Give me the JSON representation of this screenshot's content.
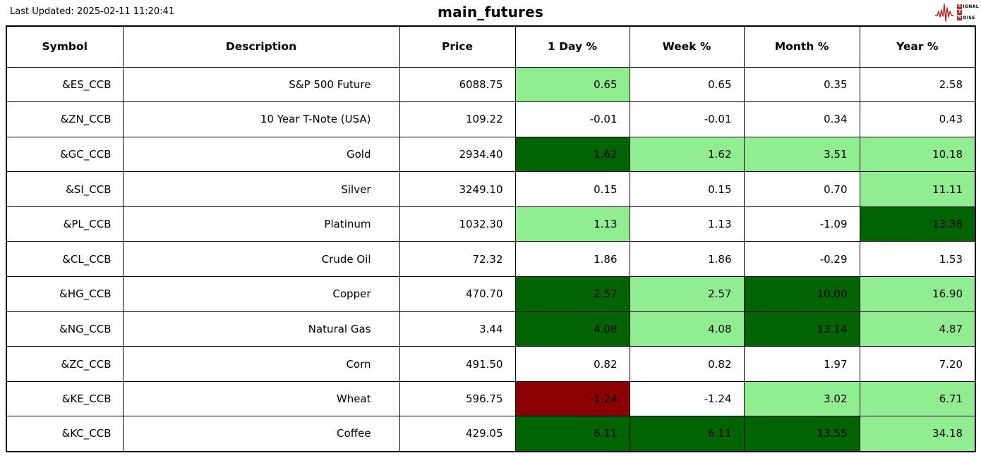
{
  "meta": {
    "last_updated": "Last Updated: 2025-02-11 11:20:41",
    "title": "main_futures"
  },
  "logo": {
    "lines": [
      {
        "badge": "S",
        "rest": "IGNAL"
      },
      {
        "badge": "2",
        "rest": ""
      },
      {
        "badge": "N",
        "rest": "OISE"
      }
    ]
  },
  "colors": {
    "light_green": "#90EE90",
    "dark_green": "#006400",
    "dark_red": "#8B0000",
    "white": "#FFFFFF",
    "logo_red": "#C41E1E",
    "border": "#000000"
  },
  "table": {
    "columns": [
      "Symbol",
      "Description",
      "Price",
      "1 Day %",
      "Week %",
      "Month %",
      "Year %"
    ],
    "pct_keys": [
      "day-pct",
      "week-pct",
      "month-pct",
      "year-pct"
    ],
    "rows": [
      {
        "symbol": "&ES_CCB",
        "description": "S&P 500 Future",
        "price": "6088.75",
        "pcts": [
          {
            "value": "0.65",
            "bg": "light_green"
          },
          {
            "value": "0.65",
            "bg": "white"
          },
          {
            "value": "0.35",
            "bg": "white"
          },
          {
            "value": "2.58",
            "bg": "white"
          }
        ]
      },
      {
        "symbol": "&ZN_CCB",
        "description": "10 Year T-Note (USA)",
        "price": "109.22",
        "pcts": [
          {
            "value": "-0.01",
            "bg": "white"
          },
          {
            "value": "-0.01",
            "bg": "white"
          },
          {
            "value": "0.34",
            "bg": "white"
          },
          {
            "value": "0.43",
            "bg": "white"
          }
        ]
      },
      {
        "symbol": "&GC_CCB",
        "description": "Gold",
        "price": "2934.40",
        "pcts": [
          {
            "value": "1.62",
            "bg": "dark_green"
          },
          {
            "value": "1.62",
            "bg": "light_green"
          },
          {
            "value": "3.51",
            "bg": "light_green"
          },
          {
            "value": "10.18",
            "bg": "light_green"
          }
        ]
      },
      {
        "symbol": "&SI_CCB",
        "description": "Silver",
        "price": "3249.10",
        "pcts": [
          {
            "value": "0.15",
            "bg": "white"
          },
          {
            "value": "0.15",
            "bg": "white"
          },
          {
            "value": "0.70",
            "bg": "white"
          },
          {
            "value": "11.11",
            "bg": "light_green"
          }
        ]
      },
      {
        "symbol": "&PL_CCB",
        "description": "Platinum",
        "price": "1032.30",
        "pcts": [
          {
            "value": "1.13",
            "bg": "light_green"
          },
          {
            "value": "1.13",
            "bg": "white"
          },
          {
            "value": "-1.09",
            "bg": "white"
          },
          {
            "value": "13.38",
            "bg": "dark_green"
          }
        ]
      },
      {
        "symbol": "&CL_CCB",
        "description": "Crude Oil",
        "price": "72.32",
        "pcts": [
          {
            "value": "1.86",
            "bg": "white"
          },
          {
            "value": "1.86",
            "bg": "white"
          },
          {
            "value": "-0.29",
            "bg": "white"
          },
          {
            "value": "1.53",
            "bg": "white"
          }
        ]
      },
      {
        "symbol": "&HG_CCB",
        "description": "Copper",
        "price": "470.70",
        "pcts": [
          {
            "value": "2.57",
            "bg": "dark_green"
          },
          {
            "value": "2.57",
            "bg": "light_green"
          },
          {
            "value": "10.00",
            "bg": "dark_green"
          },
          {
            "value": "16.90",
            "bg": "light_green"
          }
        ]
      },
      {
        "symbol": "&NG_CCB",
        "description": "Natural Gas",
        "price": "3.44",
        "pcts": [
          {
            "value": "4.08",
            "bg": "dark_green"
          },
          {
            "value": "4.08",
            "bg": "light_green"
          },
          {
            "value": "13.14",
            "bg": "dark_green"
          },
          {
            "value": "4.87",
            "bg": "light_green"
          }
        ]
      },
      {
        "symbol": "&ZC_CCB",
        "description": "Corn",
        "price": "491.50",
        "pcts": [
          {
            "value": "0.82",
            "bg": "white"
          },
          {
            "value": "0.82",
            "bg": "white"
          },
          {
            "value": "1.97",
            "bg": "white"
          },
          {
            "value": "7.20",
            "bg": "white"
          }
        ]
      },
      {
        "symbol": "&KE_CCB",
        "description": "Wheat",
        "price": "596.75",
        "pcts": [
          {
            "value": "-1.24",
            "bg": "dark_red"
          },
          {
            "value": "-1.24",
            "bg": "white"
          },
          {
            "value": "3.02",
            "bg": "light_green"
          },
          {
            "value": "6.71",
            "bg": "light_green"
          }
        ]
      },
      {
        "symbol": "&KC_CCB",
        "description": "Coffee",
        "price": "429.05",
        "pcts": [
          {
            "value": "6.11",
            "bg": "dark_green"
          },
          {
            "value": "6.11",
            "bg": "dark_green"
          },
          {
            "value": "13.55",
            "bg": "dark_green"
          },
          {
            "value": "34.18",
            "bg": "light_green"
          }
        ]
      }
    ]
  },
  "chart_data": {
    "type": "table",
    "title": "main_futures",
    "columns": [
      "Symbol",
      "Description",
      "Price",
      "1 Day %",
      "Week %",
      "Month %",
      "Year %"
    ],
    "rows": [
      [
        "&ES_CCB",
        "S&P 500 Future",
        6088.75,
        0.65,
        0.65,
        0.35,
        2.58
      ],
      [
        "&ZN_CCB",
        "10 Year T-Note (USA)",
        109.22,
        -0.01,
        -0.01,
        0.34,
        0.43
      ],
      [
        "&GC_CCB",
        "Gold",
        2934.4,
        1.62,
        1.62,
        3.51,
        10.18
      ],
      [
        "&SI_CCB",
        "Silver",
        3249.1,
        0.15,
        0.15,
        0.7,
        11.11
      ],
      [
        "&PL_CCB",
        "Platinum",
        1032.3,
        1.13,
        1.13,
        -1.09,
        13.38
      ],
      [
        "&CL_CCB",
        "Crude Oil",
        72.32,
        1.86,
        1.86,
        -0.29,
        1.53
      ],
      [
        "&HG_CCB",
        "Copper",
        470.7,
        2.57,
        2.57,
        10.0,
        16.9
      ],
      [
        "&NG_CCB",
        "Natural Gas",
        3.44,
        4.08,
        4.08,
        13.14,
        4.87
      ],
      [
        "&ZC_CCB",
        "Corn",
        491.5,
        0.82,
        0.82,
        1.97,
        7.2
      ],
      [
        "&KE_CCB",
        "Wheat",
        596.75,
        -1.24,
        -1.24,
        3.02,
        6.71
      ],
      [
        "&KC_CCB",
        "Coffee",
        429.05,
        6.11,
        6.11,
        13.55,
        34.18
      ]
    ],
    "cell_highlights_by_row": [
      [
        "light_green",
        "white",
        "white",
        "white"
      ],
      [
        "white",
        "white",
        "white",
        "white"
      ],
      [
        "dark_green",
        "light_green",
        "light_green",
        "light_green"
      ],
      [
        "white",
        "white",
        "white",
        "light_green"
      ],
      [
        "light_green",
        "white",
        "white",
        "dark_green"
      ],
      [
        "white",
        "white",
        "white",
        "white"
      ],
      [
        "dark_green",
        "light_green",
        "dark_green",
        "light_green"
      ],
      [
        "dark_green",
        "light_green",
        "dark_green",
        "light_green"
      ],
      [
        "white",
        "white",
        "white",
        "white"
      ],
      [
        "dark_red",
        "white",
        "light_green",
        "light_green"
      ],
      [
        "dark_green",
        "dark_green",
        "dark_green",
        "light_green"
      ]
    ]
  }
}
